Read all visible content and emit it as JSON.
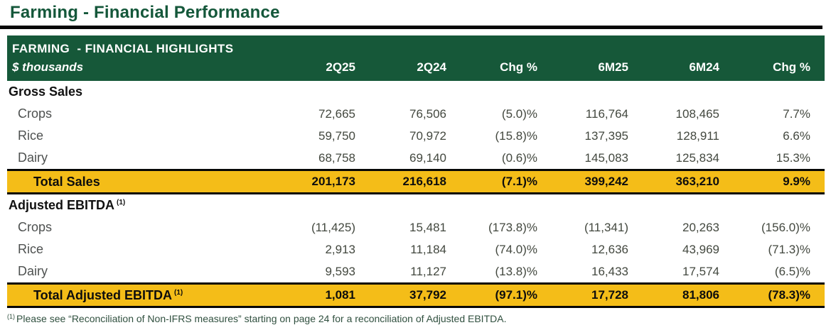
{
  "page_title": "Farming - Financial Performance",
  "table": {
    "header": {
      "title": "FARMING  - FINANCIAL HIGHLIGHTS",
      "unit_label": "$ thousands",
      "columns": [
        "2Q25",
        "2Q24",
        "Chg %",
        "6M25",
        "6M24",
        "Chg %"
      ]
    },
    "sections": [
      {
        "label": "Gross Sales",
        "superscript": "",
        "rows": [
          {
            "label": "Crops",
            "values": [
              "72,665",
              "76,506",
              "(5.0)%",
              "116,764",
              "108,465",
              "7.7%"
            ]
          },
          {
            "label": "Rice",
            "values": [
              "59,750",
              "70,972",
              "(15.8)%",
              "137,395",
              "128,911",
              "6.6%"
            ]
          },
          {
            "label": "Dairy",
            "values": [
              "68,758",
              "69,140",
              "(0.6)%",
              "145,083",
              "125,834",
              "15.3%"
            ]
          }
        ],
        "total": {
          "label": "Total Sales",
          "superscript": "",
          "values": [
            "201,173",
            "216,618",
            "(7.1)%",
            "399,242",
            "363,210",
            "9.9%"
          ]
        }
      },
      {
        "label": "Adjusted EBITDA",
        "superscript": "(1)",
        "rows": [
          {
            "label": "Crops",
            "values": [
              "(11,425)",
              "15,481",
              "(173.8)%",
              "(11,341)",
              "20,263",
              "(156.0)%"
            ]
          },
          {
            "label": "Rice",
            "values": [
              "2,913",
              "11,184",
              "(74.0)%",
              "12,636",
              "43,969",
              "(71.3)%"
            ]
          },
          {
            "label": "Dairy",
            "values": [
              "9,593",
              "11,127",
              "(13.8)%",
              "16,433",
              "17,574",
              "(6.5)%"
            ]
          }
        ],
        "total": {
          "label": "Total Adjusted EBITDA",
          "superscript": "(1)",
          "values": [
            "1,081",
            "37,792",
            "(97.1)%",
            "17,728",
            "81,806",
            "(78.3)%"
          ]
        }
      }
    ]
  },
  "footnote": {
    "marker": "(1)",
    "text": "Please see “Reconciliation of Non-IFRS measures” starting on page 24 for a reconciliation of Adjusted EBITDA."
  },
  "colors": {
    "brand_green": "#165839",
    "title_green": "#14573A",
    "accent_gold": "#F4BD18",
    "rule_black": "#070707"
  }
}
